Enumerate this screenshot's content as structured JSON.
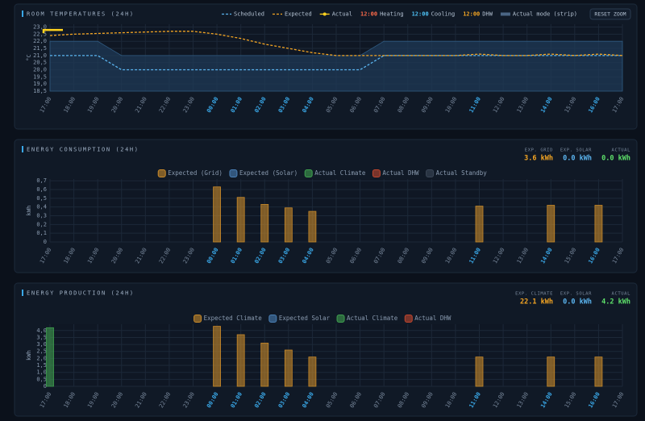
{
  "chart_data": [
    {
      "type": "line",
      "title": "ROOM TEMPERATURES (24H)",
      "y_label": "°C",
      "reset_button": "RESET ZOOM",
      "categories": [
        "17:00",
        "18:00",
        "19:00",
        "20:00",
        "21:00",
        "22:00",
        "23:00",
        "00:00",
        "01:00",
        "02:00",
        "03:00",
        "04:00",
        "05:00",
        "06:00",
        "07:00",
        "08:00",
        "09:00",
        "10:00",
        "11:00",
        "12:00",
        "13:00",
        "14:00",
        "15:00",
        "16:00",
        "17:00"
      ],
      "x_highlight": [
        7,
        8,
        9,
        10,
        11,
        18,
        21,
        23
      ],
      "highlight_color": "#3aa8e8",
      "ylim": [
        18.5,
        23.2
      ],
      "yticks": [
        {
          "value": 23,
          "label": "23,0"
        },
        {
          "value": 22.5,
          "label": "22,5"
        },
        {
          "value": 22,
          "label": "22,0"
        },
        {
          "value": 21.5,
          "label": "21,5"
        },
        {
          "value": 21,
          "label": "21,0"
        },
        {
          "value": 20.5,
          "label": "20,5"
        },
        {
          "value": 20,
          "label": "20,0"
        },
        {
          "value": 19.5,
          "label": "19,5"
        },
        {
          "value": 19,
          "label": "19,0"
        },
        {
          "value": 18.5,
          "label": "18,5"
        }
      ],
      "grid": true,
      "series": [
        {
          "name": "Scheduled",
          "color": "#5bb5f0",
          "style": "dashed",
          "values": [
            21,
            21,
            21,
            20,
            20,
            20,
            20,
            20,
            20,
            20,
            20,
            20,
            20,
            20,
            21,
            21,
            21,
            21,
            21,
            21,
            21,
            21,
            21,
            21,
            21
          ]
        },
        {
          "name": "Expected",
          "color": "#f5a623",
          "style": "dashed",
          "values": [
            22.4,
            22.5,
            22.55,
            22.6,
            22.65,
            22.7,
            22.7,
            22.5,
            22.2,
            21.8,
            21.5,
            21.2,
            21,
            21,
            21,
            21,
            21,
            21,
            21.1,
            21,
            21,
            21.1,
            21,
            21.1,
            21
          ]
        },
        {
          "name": "Actual",
          "color": "#ffd21f",
          "style": "solid",
          "values": [
            22.8,
            null,
            null,
            null,
            null,
            null,
            null,
            null,
            null,
            null,
            null,
            null,
            null,
            null,
            null,
            null,
            null,
            null,
            null,
            null,
            null,
            null,
            null,
            null,
            null
          ]
        },
        {
          "name": "Actual mode (strip)",
          "color": "#1f3a56",
          "style": "area",
          "values": [
            22,
            22,
            22,
            21,
            21,
            21,
            21,
            21,
            21,
            21,
            21,
            21,
            21,
            21,
            22,
            22,
            22,
            22,
            22,
            22,
            22,
            22,
            22,
            22,
            22
          ]
        }
      ],
      "modes": [
        {
          "time": "12:00",
          "name": "Heating",
          "color": "#ff6b4a"
        },
        {
          "time": "12:00",
          "name": "Cooling",
          "color": "#4fc3f7"
        },
        {
          "time": "12:00",
          "name": "DHW",
          "color": "#f5a623"
        }
      ]
    },
    {
      "type": "bar",
      "title": "ENERGY CONSUMPTION (24H)",
      "y_label": "kWh",
      "stats": [
        {
          "label": "EXP. GRID",
          "value": "3.6 kWh",
          "color": "#f5a623"
        },
        {
          "label": "EXP. SOLAR",
          "value": "0.0 kWh",
          "color": "#5bb5f0"
        },
        {
          "label": "ACTUAL",
          "value": "0.0 kWh",
          "color": "#5ee06a"
        }
      ],
      "categories": [
        "17:00",
        "18:00",
        "19:00",
        "20:00",
        "21:00",
        "22:00",
        "23:00",
        "00:00",
        "01:00",
        "02:00",
        "03:00",
        "04:00",
        "05:00",
        "06:00",
        "07:00",
        "08:00",
        "09:00",
        "10:00",
        "11:00",
        "12:00",
        "13:00",
        "14:00",
        "15:00",
        "16:00",
        "17:00"
      ],
      "x_highlight": [
        7,
        8,
        9,
        10,
        11,
        18,
        21,
        23
      ],
      "highlight_color": "#3aa8e8",
      "ylim": [
        0,
        0.72
      ],
      "yticks": [
        {
          "value": 0.7,
          "label": "0,7"
        },
        {
          "value": 0.6,
          "label": "0,6"
        },
        {
          "value": 0.5,
          "label": "0,5"
        },
        {
          "value": 0.4,
          "label": "0,4"
        },
        {
          "value": 0.3,
          "label": "0,3"
        },
        {
          "value": 0.2,
          "label": "0,2"
        },
        {
          "value": 0.1,
          "label": "0,1"
        },
        0
      ],
      "grid": true,
      "series": [
        {
          "name": "Expected (Grid)",
          "color": "#c98a2a",
          "values": [
            0,
            0,
            0,
            0,
            0,
            0,
            0,
            0.63,
            0.51,
            0.43,
            0.39,
            0.35,
            0,
            0,
            0,
            0,
            0,
            0,
            0.41,
            0,
            0,
            0.42,
            0,
            0.42,
            0
          ]
        },
        {
          "name": "Expected (Solar)",
          "color": "#4a7fb5",
          "values": [
            0,
            0,
            0,
            0,
            0,
            0,
            0,
            0,
            0,
            0,
            0,
            0,
            0,
            0,
            0,
            0,
            0,
            0,
            0,
            0,
            0,
            0,
            0,
            0,
            0
          ]
        },
        {
          "name": "Actual Climate",
          "color": "#3f9f4f",
          "values": [
            0,
            0,
            0,
            0,
            0,
            0,
            0,
            0,
            0,
            0,
            0,
            0,
            0,
            0,
            0,
            0,
            0,
            0,
            0,
            0,
            0,
            0,
            0,
            0,
            0
          ]
        },
        {
          "name": "Actual DHW",
          "color": "#c0462e",
          "values": [
            0,
            0,
            0,
            0,
            0,
            0,
            0,
            0,
            0,
            0,
            0,
            0,
            0,
            0,
            0,
            0,
            0,
            0,
            0,
            0,
            0,
            0,
            0,
            0,
            0
          ]
        },
        {
          "name": "Actual Standby",
          "color": "#3a4656",
          "values": [
            0,
            0,
            0,
            0,
            0,
            0,
            0,
            0,
            0,
            0,
            0,
            0,
            0,
            0,
            0,
            0,
            0,
            0,
            0,
            0,
            0,
            0,
            0,
            0,
            0
          ]
        }
      ]
    },
    {
      "type": "bar",
      "title": "ENERGY PRODUCTION (24H)",
      "y_label": "kWh",
      "stats": [
        {
          "label": "EXP. CLIMATE",
          "value": "22.1 kWh",
          "color": "#f5a623"
        },
        {
          "label": "EXP. SOLAR",
          "value": "0.0 kWh",
          "color": "#5bb5f0"
        },
        {
          "label": "ACTUAL",
          "value": "4.2 kWh",
          "color": "#5ee06a"
        }
      ],
      "categories": [
        "17:00",
        "18:00",
        "19:00",
        "20:00",
        "21:00",
        "22:00",
        "23:00",
        "00:00",
        "01:00",
        "02:00",
        "03:00",
        "04:00",
        "05:00",
        "06:00",
        "07:00",
        "08:00",
        "09:00",
        "10:00",
        "11:00",
        "12:00",
        "13:00",
        "14:00",
        "15:00",
        "16:00",
        "17:00"
      ],
      "x_highlight": [
        7,
        8,
        9,
        10,
        11,
        18,
        21,
        23
      ],
      "highlight_color": "#3aa8e8",
      "ylim": [
        0,
        4.45
      ],
      "yticks": [
        {
          "value": 4,
          "label": "4,0"
        },
        {
          "value": 3.5,
          "label": "3,5"
        },
        {
          "value": 3,
          "label": "3,0"
        },
        {
          "value": 2.5,
          "label": "2,5"
        },
        {
          "value": 2,
          "label": "2,0"
        },
        {
          "value": 1.5,
          "label": "1,5"
        },
        {
          "value": 1,
          "label": "1,0"
        },
        {
          "value": 0.5,
          "label": "0,5"
        },
        0
      ],
      "grid": true,
      "series": [
        {
          "name": "Expected Climate",
          "color": "#c98a2a",
          "values": [
            0,
            0,
            0,
            0,
            0,
            0,
            0,
            4.3,
            3.7,
            3.1,
            2.6,
            2.1,
            0,
            0,
            0,
            0,
            0,
            0,
            2.1,
            0,
            0,
            2.1,
            0,
            2.1,
            0
          ]
        },
        {
          "name": "Expected Solar",
          "color": "#4a7fb5",
          "values": [
            0,
            0,
            0,
            0,
            0,
            0,
            0,
            0,
            0,
            0,
            0,
            0,
            0,
            0,
            0,
            0,
            0,
            0,
            0,
            0,
            0,
            0,
            0,
            0,
            0
          ]
        },
        {
          "name": "Actual Climate",
          "color": "#3f9f4f",
          "values": [
            4.2,
            0,
            0,
            0,
            0,
            0,
            0,
            0,
            0,
            0,
            0,
            0,
            0,
            0,
            0,
            0,
            0,
            0,
            0,
            0,
            0,
            0,
            0,
            0,
            0
          ]
        },
        {
          "name": "Actual DHW",
          "color": "#c0462e",
          "values": [
            0,
            0,
            0,
            0,
            0,
            0,
            0,
            0,
            0,
            0,
            0,
            0,
            0,
            0,
            0,
            0,
            0,
            0,
            0,
            0,
            0,
            0,
            0,
            0,
            0
          ]
        }
      ]
    }
  ]
}
